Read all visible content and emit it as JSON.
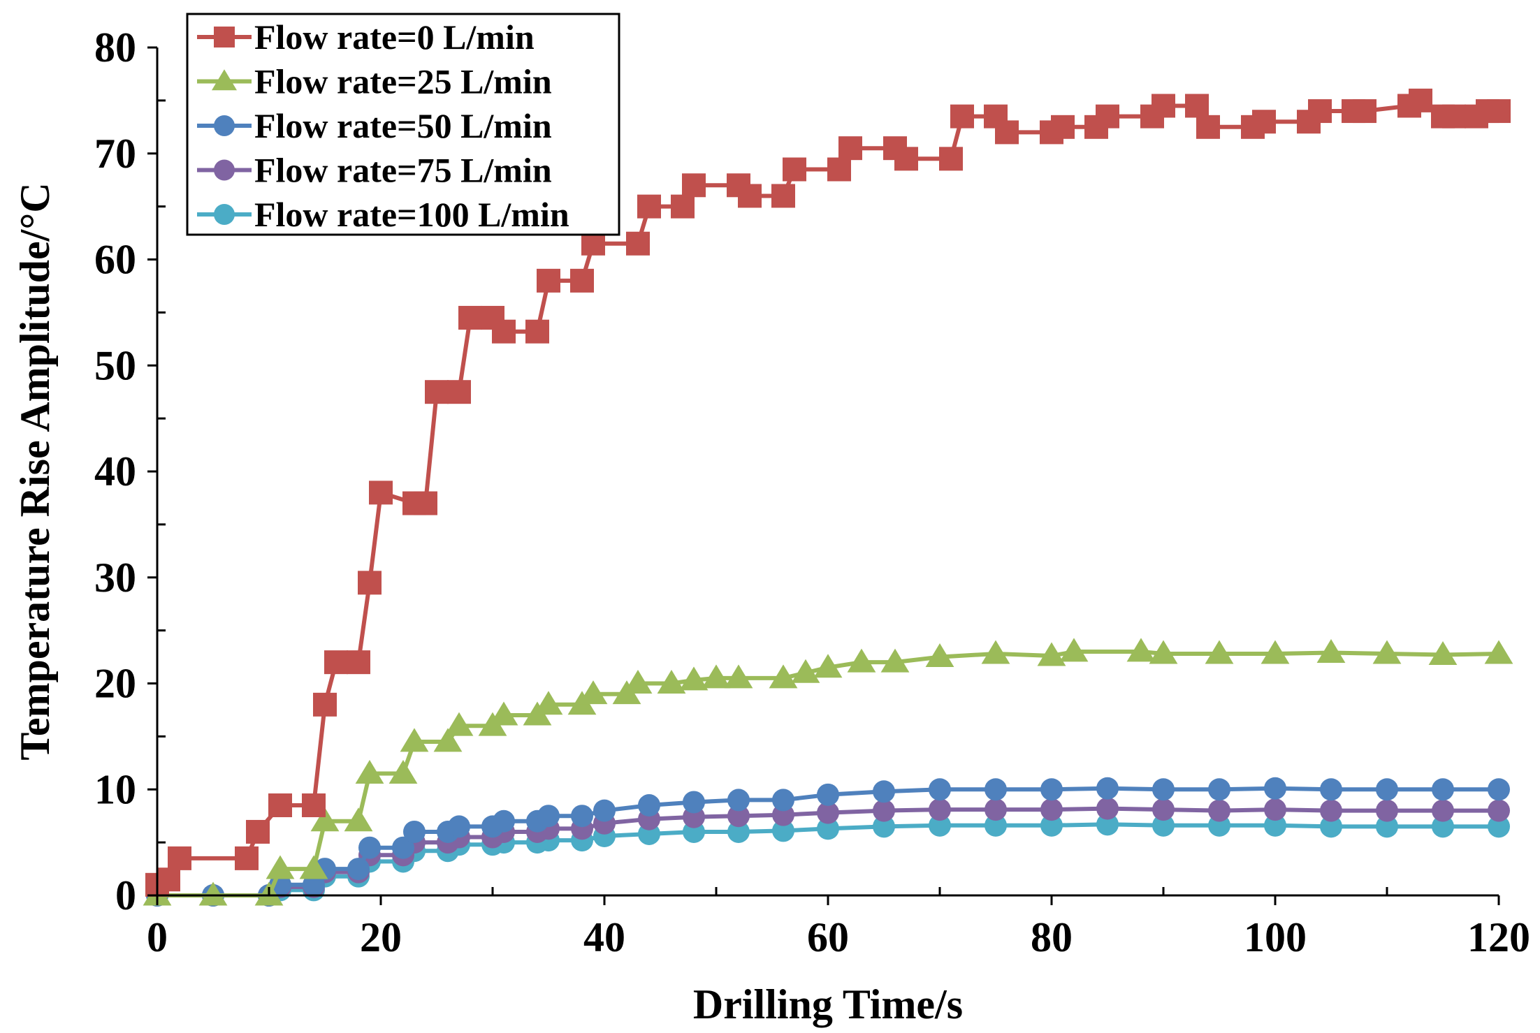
{
  "chart_data": {
    "type": "line",
    "title": "",
    "xlabel": "Drilling Time/s",
    "ylabel": "Temperature Rise Amplitude/°C",
    "xlim": [
      0,
      120
    ],
    "ylim": [
      0,
      80
    ],
    "xticks": [
      0,
      20,
      40,
      60,
      80,
      100,
      120
    ],
    "yticks": [
      0,
      10,
      20,
      30,
      40,
      50,
      60,
      70,
      80
    ],
    "grid": false,
    "legend_position": "top-left",
    "series": [
      {
        "name": "Flow rate=0 L/min",
        "color": "#c0504d",
        "marker": "square",
        "x": [
          0,
          1,
          2,
          8,
          9,
          11,
          14,
          15,
          16,
          18,
          19,
          20,
          23,
          24,
          25,
          27,
          28,
          30,
          31,
          34,
          35,
          38,
          39,
          43,
          44,
          47,
          48,
          52,
          53,
          56,
          57,
          61,
          62,
          66,
          67,
          71,
          72,
          75,
          76,
          80,
          81,
          84,
          85,
          89,
          90,
          93,
          94,
          98,
          99,
          103,
          104,
          107,
          108,
          112,
          113,
          115,
          116,
          118,
          119,
          120
        ],
        "values": [
          1,
          1.5,
          3.5,
          3.5,
          6,
          8.5,
          8.5,
          18,
          22,
          22,
          29.5,
          38,
          37,
          37,
          47.5,
          47.5,
          54.5,
          54.5,
          53.2,
          53.2,
          58,
          58,
          61.5,
          61.5,
          65,
          65,
          67,
          67,
          66,
          66,
          68.5,
          68.5,
          70.5,
          70.5,
          69.5,
          69.5,
          73.5,
          73.5,
          72,
          72,
          72.5,
          72.5,
          73.5,
          73.5,
          74.5,
          74.5,
          72.5,
          72.5,
          73,
          73,
          74,
          74,
          74,
          74.5,
          75,
          73.5,
          73.5,
          73.5,
          74,
          74
        ]
      },
      {
        "name": "Flow rate=25 L/min",
        "color": "#9bbb59",
        "marker": "triangle",
        "x": [
          0,
          5,
          10,
          11,
          14,
          15,
          18,
          19,
          22,
          23,
          26,
          27,
          30,
          31,
          34,
          35,
          38,
          39,
          42,
          43,
          46,
          48,
          50,
          52,
          56,
          58,
          60,
          63,
          66,
          70,
          75,
          80,
          82,
          88,
          90,
          95,
          100,
          105,
          110,
          115,
          120
        ],
        "values": [
          0,
          0,
          0,
          2.5,
          2.5,
          7,
          7,
          11.5,
          11.5,
          14.5,
          14.5,
          16,
          16,
          17,
          17,
          18,
          18,
          19,
          19,
          20,
          20,
          20.3,
          20.5,
          20.5,
          20.5,
          21,
          21.5,
          22,
          22,
          22.5,
          22.8,
          22.6,
          23,
          23,
          22.8,
          22.8,
          22.8,
          22.9,
          22.8,
          22.7,
          22.8
        ]
      },
      {
        "name": "Flow rate=50 L/min",
        "color": "#4f81bd",
        "marker": "circle",
        "x": [
          0,
          5,
          10,
          11,
          14,
          15,
          18,
          19,
          22,
          23,
          26,
          27,
          30,
          31,
          34,
          35,
          38,
          40,
          44,
          48,
          52,
          56,
          60,
          65,
          70,
          75,
          80,
          85,
          90,
          95,
          100,
          105,
          110,
          115,
          120
        ],
        "values": [
          0,
          0,
          0,
          1,
          1,
          2.5,
          2.5,
          4.5,
          4.5,
          6,
          6,
          6.5,
          6.5,
          7,
          7,
          7.5,
          7.5,
          8,
          8.5,
          8.8,
          9,
          9,
          9.5,
          9.8,
          10,
          10,
          10,
          10.1,
          10,
          10,
          10.1,
          10,
          10,
          10,
          10
        ]
      },
      {
        "name": "Flow rate=75 L/min",
        "color": "#8064a2",
        "marker": "circle",
        "x": [
          0,
          5,
          10,
          11,
          14,
          15,
          18,
          19,
          22,
          23,
          26,
          27,
          30,
          31,
          34,
          35,
          38,
          40,
          44,
          48,
          52,
          56,
          60,
          65,
          70,
          75,
          80,
          85,
          90,
          95,
          100,
          105,
          110,
          115,
          120
        ],
        "values": [
          0,
          0,
          0,
          0.8,
          0.8,
          2.2,
          2.2,
          3.8,
          3.8,
          5,
          5,
          5.5,
          5.5,
          6,
          6,
          6.3,
          6.3,
          6.8,
          7.2,
          7.4,
          7.5,
          7.6,
          7.8,
          8,
          8.1,
          8.1,
          8.1,
          8.2,
          8.1,
          8,
          8.1,
          8,
          8,
          8,
          8
        ]
      },
      {
        "name": "Flow rate=100 L/min",
        "color": "#4bacc6",
        "marker": "circle",
        "x": [
          0,
          5,
          10,
          11,
          14,
          15,
          18,
          19,
          22,
          23,
          26,
          27,
          30,
          31,
          34,
          35,
          38,
          40,
          44,
          48,
          52,
          56,
          60,
          65,
          70,
          75,
          80,
          85,
          90,
          95,
          100,
          105,
          110,
          115,
          120
        ],
        "values": [
          0,
          0,
          0,
          0.5,
          0.5,
          1.8,
          1.8,
          3.2,
          3.2,
          4.2,
          4.2,
          4.8,
          4.8,
          5,
          5,
          5.2,
          5.2,
          5.6,
          5.8,
          6,
          6,
          6.1,
          6.3,
          6.5,
          6.6,
          6.6,
          6.6,
          6.7,
          6.6,
          6.6,
          6.6,
          6.5,
          6.5,
          6.5,
          6.5
        ]
      }
    ]
  }
}
